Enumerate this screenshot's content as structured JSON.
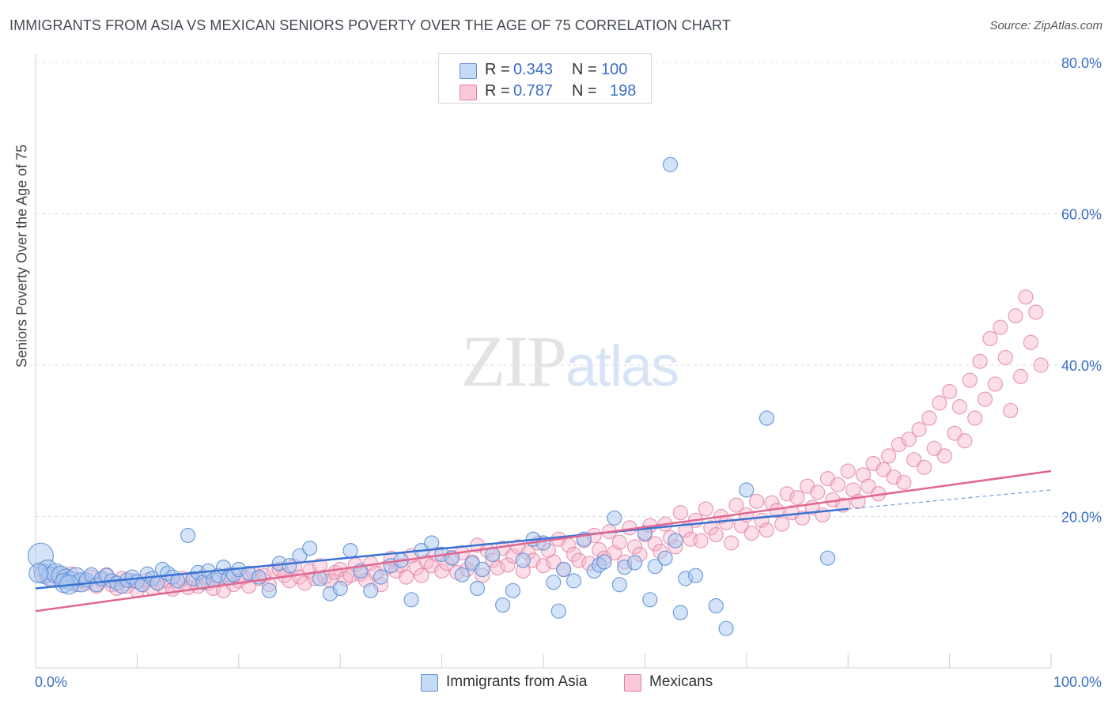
{
  "header": {
    "title": "IMMIGRANTS FROM ASIA VS MEXICAN SENIORS POVERTY OVER THE AGE OF 75 CORRELATION CHART",
    "source": "Source: ZipAtlas.com"
  },
  "legend": {
    "rows": [
      {
        "r_label": "R =",
        "r_value": "0.343",
        "n_label": "N =",
        "n_value": "100"
      },
      {
        "r_label": "R =",
        "r_value": "0.787",
        "n_label": "N =",
        "n_value": "198"
      }
    ]
  },
  "bottom_legend": {
    "series_1": "Immigrants from Asia",
    "series_2": "Mexicans"
  },
  "colors": {
    "asia_fill": "#a9c8f0",
    "asia_stroke": "#5d8fd6",
    "asia_line": "#3a72d4",
    "mex_fill": "#f6b6cb",
    "mex_stroke": "#e07fa1",
    "mex_line": "#e0678f",
    "tick_label": "#3a6fc4"
  },
  "chart_data": {
    "type": "scatter",
    "title": "IMMIGRANTS FROM ASIA VS MEXICAN SENIORS POVERTY OVER THE AGE OF 75 CORRELATION CHART",
    "xlabel": "",
    "ylabel": "Seniors Poverty Over the Age of 75",
    "xlim": [
      0,
      100
    ],
    "ylim": [
      0,
      80
    ],
    "x_tick_labels": [
      "0.0%",
      "100.0%"
    ],
    "y_ticks": [
      20,
      40,
      60,
      80
    ],
    "y_tick_labels": [
      "20.0%",
      "40.0%",
      "60.0%",
      "80.0%"
    ],
    "grid": "horizontal dashed",
    "legend_position": "top-center",
    "watermark": "ZIPatlas",
    "series": [
      {
        "name": "Immigrants from Asia",
        "r": 0.343,
        "n": 100,
        "trend": {
          "x0": 0,
          "y0": 10.5,
          "x1": 80,
          "y1": 21.0,
          "dashed_to": 100,
          "dashed_y": 23.5
        },
        "points": [
          [
            0.5,
            14.8
          ],
          [
            0.8,
            12.4
          ],
          [
            1.2,
            13.0
          ],
          [
            1.5,
            12.0
          ],
          [
            2.0,
            12.5
          ],
          [
            2.5,
            12.2
          ],
          [
            3.0,
            11.8
          ],
          [
            3.5,
            11.5
          ],
          [
            4.0,
            12.0
          ],
          [
            4.5,
            11.3
          ],
          [
            5.0,
            11.6
          ],
          [
            5.5,
            12.3
          ],
          [
            6.0,
            11.0
          ],
          [
            6.5,
            11.8
          ],
          [
            7.0,
            12.2
          ],
          [
            7.5,
            11.5
          ],
          [
            8.0,
            11.2
          ],
          [
            8.5,
            10.8
          ],
          [
            9.0,
            11.6
          ],
          [
            9.5,
            12.0
          ],
          [
            10.0,
            11.4
          ],
          [
            10.5,
            11.0
          ],
          [
            11.0,
            12.4
          ],
          [
            11.5,
            11.8
          ],
          [
            12.0,
            11.2
          ],
          [
            12.5,
            13.0
          ],
          [
            13.0,
            12.5
          ],
          [
            13.5,
            12.0
          ],
          [
            14.0,
            11.5
          ],
          [
            15.0,
            17.5
          ],
          [
            15.5,
            11.8
          ],
          [
            16.0,
            12.6
          ],
          [
            16.5,
            11.3
          ],
          [
            17.0,
            12.8
          ],
          [
            17.5,
            11.6
          ],
          [
            18.0,
            12.2
          ],
          [
            18.5,
            13.3
          ],
          [
            19.0,
            11.9
          ],
          [
            19.5,
            12.3
          ],
          [
            20.0,
            13.0
          ],
          [
            21.0,
            12.5
          ],
          [
            22.0,
            12.0
          ],
          [
            23.0,
            10.2
          ],
          [
            24.0,
            13.8
          ],
          [
            25.0,
            13.5
          ],
          [
            26.0,
            14.8
          ],
          [
            27.0,
            15.8
          ],
          [
            28.0,
            11.8
          ],
          [
            29.0,
            9.8
          ],
          [
            30.0,
            10.5
          ],
          [
            31.0,
            15.5
          ],
          [
            32.0,
            12.8
          ],
          [
            33.0,
            10.2
          ],
          [
            34.0,
            12.0
          ],
          [
            35.0,
            13.5
          ],
          [
            36.0,
            14.2
          ],
          [
            37.0,
            9.0
          ],
          [
            38.0,
            15.5
          ],
          [
            39.0,
            16.5
          ],
          [
            40.0,
            15.0
          ],
          [
            41.0,
            14.5
          ],
          [
            42.0,
            12.3
          ],
          [
            43.0,
            13.8
          ],
          [
            43.5,
            10.5
          ],
          [
            44.0,
            13.0
          ],
          [
            45.0,
            15.0
          ],
          [
            46.0,
            8.3
          ],
          [
            47.0,
            10.2
          ],
          [
            48.0,
            14.2
          ],
          [
            49.0,
            17.0
          ],
          [
            50.0,
            16.5
          ],
          [
            51.0,
            11.3
          ],
          [
            51.5,
            7.5
          ],
          [
            52.0,
            13.0
          ],
          [
            53.0,
            11.5
          ],
          [
            54.0,
            17.0
          ],
          [
            55.0,
            12.8
          ],
          [
            55.5,
            13.6
          ],
          [
            56.0,
            14.0
          ],
          [
            57.0,
            19.8
          ],
          [
            57.5,
            11.0
          ],
          [
            58.0,
            13.3
          ],
          [
            59.0,
            13.9
          ],
          [
            60.0,
            17.8
          ],
          [
            60.5,
            9.0
          ],
          [
            61.0,
            13.4
          ],
          [
            62.0,
            14.5
          ],
          [
            63.0,
            16.8
          ],
          [
            63.5,
            7.3
          ],
          [
            64.0,
            11.8
          ],
          [
            65.0,
            12.2
          ],
          [
            67.0,
            8.2
          ],
          [
            68.0,
            5.2
          ],
          [
            70.0,
            23.5
          ],
          [
            72.0,
            33.0
          ],
          [
            78.0,
            14.5
          ],
          [
            62.5,
            66.5
          ],
          [
            2.8,
            11.2
          ],
          [
            3.3,
            11.0
          ],
          [
            0.3,
            12.5
          ]
        ]
      },
      {
        "name": "Mexicans",
        "r": 0.787,
        "n": 198,
        "trend": {
          "x0": 0,
          "y0": 7.5,
          "x1": 100,
          "y1": 26.0
        },
        "points": [
          [
            0.5,
            13.0
          ],
          [
            1.0,
            12.2
          ],
          [
            1.5,
            11.8
          ],
          [
            2.0,
            12.5
          ],
          [
            2.5,
            11.5
          ],
          [
            3.0,
            11.8
          ],
          [
            3.5,
            12.4
          ],
          [
            4.0,
            11.0
          ],
          [
            4.5,
            11.6
          ],
          [
            5.0,
            11.2
          ],
          [
            5.5,
            12.0
          ],
          [
            6.0,
            10.8
          ],
          [
            6.5,
            11.5
          ],
          [
            7.0,
            12.3
          ],
          [
            7.5,
            11.0
          ],
          [
            8.0,
            10.5
          ],
          [
            8.5,
            11.8
          ],
          [
            9.0,
            10.8
          ],
          [
            9.5,
            11.5
          ],
          [
            10.0,
            10.2
          ],
          [
            10.5,
            11.0
          ],
          [
            11.0,
            11.6
          ],
          [
            11.5,
            10.5
          ],
          [
            12.0,
            11.2
          ],
          [
            12.5,
            10.8
          ],
          [
            13.0,
            11.5
          ],
          [
            13.5,
            10.4
          ],
          [
            14.0,
            11.0
          ],
          [
            14.5,
            11.8
          ],
          [
            15.0,
            10.6
          ],
          [
            15.5,
            11.4
          ],
          [
            16.0,
            10.8
          ],
          [
            16.5,
            12.0
          ],
          [
            17.0,
            11.2
          ],
          [
            17.5,
            10.5
          ],
          [
            18.0,
            11.6
          ],
          [
            18.5,
            10.2
          ],
          [
            19.0,
            12.3
          ],
          [
            19.5,
            11.0
          ],
          [
            20.0,
            11.5
          ],
          [
            20.5,
            12.0
          ],
          [
            21.0,
            10.8
          ],
          [
            21.5,
            12.5
          ],
          [
            22.0,
            11.8
          ],
          [
            22.5,
            12.2
          ],
          [
            23.0,
            11.0
          ],
          [
            23.5,
            12.8
          ],
          [
            24.0,
            13.0
          ],
          [
            24.5,
            12.2
          ],
          [
            25.0,
            11.5
          ],
          [
            25.5,
            13.4
          ],
          [
            26.0,
            12.0
          ],
          [
            26.5,
            11.2
          ],
          [
            27.0,
            12.8
          ],
          [
            27.5,
            11.8
          ],
          [
            28.0,
            13.5
          ],
          [
            28.5,
            12.0
          ],
          [
            29.0,
            11.5
          ],
          [
            29.5,
            12.6
          ],
          [
            30.0,
            13.0
          ],
          [
            30.5,
            11.8
          ],
          [
            31.0,
            12.2
          ],
          [
            31.5,
            13.6
          ],
          [
            32.0,
            12.4
          ],
          [
            32.5,
            11.6
          ],
          [
            33.0,
            13.8
          ],
          [
            33.5,
            12.5
          ],
          [
            34.0,
            11.0
          ],
          [
            34.5,
            13.2
          ],
          [
            35.0,
            14.5
          ],
          [
            35.5,
            12.8
          ],
          [
            36.0,
            13.5
          ],
          [
            36.5,
            12.0
          ],
          [
            37.0,
            14.8
          ],
          [
            37.5,
            13.2
          ],
          [
            38.0,
            12.2
          ],
          [
            38.5,
            14.0
          ],
          [
            39.0,
            13.5
          ],
          [
            39.5,
            15.0
          ],
          [
            40.0,
            12.8
          ],
          [
            40.5,
            13.8
          ],
          [
            41.0,
            14.6
          ],
          [
            41.5,
            12.6
          ],
          [
            42.0,
            15.2
          ],
          [
            42.5,
            13.0
          ],
          [
            43.0,
            14.0
          ],
          [
            43.5,
            16.2
          ],
          [
            44.0,
            12.2
          ],
          [
            44.5,
            15.5
          ],
          [
            45.0,
            14.2
          ],
          [
            45.5,
            13.2
          ],
          [
            46.0,
            15.8
          ],
          [
            46.5,
            13.6
          ],
          [
            47.0,
            14.8
          ],
          [
            47.5,
            16.0
          ],
          [
            48.0,
            12.8
          ],
          [
            48.5,
            15.2
          ],
          [
            49.0,
            14.2
          ],
          [
            49.5,
            16.5
          ],
          [
            50.0,
            13.5
          ],
          [
            50.5,
            15.5
          ],
          [
            51.0,
            14.0
          ],
          [
            51.5,
            17.0
          ],
          [
            52.0,
            13.0
          ],
          [
            52.5,
            16.2
          ],
          [
            53.0,
            15.0
          ],
          [
            53.5,
            14.2
          ],
          [
            54.0,
            16.8
          ],
          [
            54.5,
            13.8
          ],
          [
            55.0,
            17.5
          ],
          [
            55.5,
            15.6
          ],
          [
            56.0,
            14.5
          ],
          [
            56.5,
            18.0
          ],
          [
            57.0,
            15.2
          ],
          [
            57.5,
            16.6
          ],
          [
            58.0,
            14.0
          ],
          [
            58.5,
            18.5
          ],
          [
            59.0,
            16.0
          ],
          [
            59.5,
            15.0
          ],
          [
            60.0,
            17.6
          ],
          [
            60.5,
            18.8
          ],
          [
            61.0,
            16.4
          ],
          [
            61.5,
            15.4
          ],
          [
            62.0,
            19.0
          ],
          [
            62.5,
            17.2
          ],
          [
            63.0,
            16.0
          ],
          [
            63.5,
            20.5
          ],
          [
            64.0,
            18.2
          ],
          [
            64.5,
            17.0
          ],
          [
            65.0,
            19.5
          ],
          [
            65.5,
            16.8
          ],
          [
            66.0,
            21.0
          ],
          [
            66.5,
            18.5
          ],
          [
            67.0,
            17.6
          ],
          [
            67.5,
            20.0
          ],
          [
            68.0,
            19.2
          ],
          [
            68.5,
            16.5
          ],
          [
            69.0,
            21.5
          ],
          [
            69.5,
            18.8
          ],
          [
            70.0,
            20.2
          ],
          [
            70.5,
            17.8
          ],
          [
            71.0,
            22.0
          ],
          [
            71.5,
            19.5
          ],
          [
            72.0,
            18.2
          ],
          [
            72.5,
            21.8
          ],
          [
            73.0,
            20.8
          ],
          [
            73.5,
            19.0
          ],
          [
            74.0,
            23.0
          ],
          [
            74.5,
            20.5
          ],
          [
            75.0,
            22.5
          ],
          [
            75.5,
            19.8
          ],
          [
            76.0,
            24.0
          ],
          [
            76.5,
            21.2
          ],
          [
            77.0,
            23.2
          ],
          [
            77.5,
            20.2
          ],
          [
            78.0,
            25.0
          ],
          [
            78.5,
            22.2
          ],
          [
            79.0,
            24.2
          ],
          [
            79.5,
            21.5
          ],
          [
            80.0,
            26.0
          ],
          [
            80.5,
            23.5
          ],
          [
            81.0,
            22.0
          ],
          [
            81.5,
            25.5
          ],
          [
            82.0,
            24.0
          ],
          [
            82.5,
            27.0
          ],
          [
            83.0,
            23.0
          ],
          [
            83.5,
            26.2
          ],
          [
            84.0,
            28.0
          ],
          [
            84.5,
            25.2
          ],
          [
            85.0,
            29.5
          ],
          [
            85.5,
            24.5
          ],
          [
            86.0,
            30.2
          ],
          [
            86.5,
            27.5
          ],
          [
            87.0,
            31.5
          ],
          [
            87.5,
            26.5
          ],
          [
            88.0,
            33.0
          ],
          [
            88.5,
            29.0
          ],
          [
            89.0,
            35.0
          ],
          [
            89.5,
            28.0
          ],
          [
            90.0,
            36.5
          ],
          [
            90.5,
            31.0
          ],
          [
            91.0,
            34.5
          ],
          [
            91.5,
            30.0
          ],
          [
            92.0,
            38.0
          ],
          [
            92.5,
            33.0
          ],
          [
            93.0,
            40.5
          ],
          [
            93.5,
            35.5
          ],
          [
            94.0,
            43.5
          ],
          [
            94.5,
            37.5
          ],
          [
            95.0,
            45.0
          ],
          [
            95.5,
            41.0
          ],
          [
            96.0,
            34.0
          ],
          [
            96.5,
            46.5
          ],
          [
            97.0,
            38.5
          ],
          [
            97.5,
            49.0
          ],
          [
            98.0,
            43.0
          ],
          [
            98.5,
            47.0
          ],
          [
            99.0,
            40.0
          ]
        ]
      }
    ]
  }
}
